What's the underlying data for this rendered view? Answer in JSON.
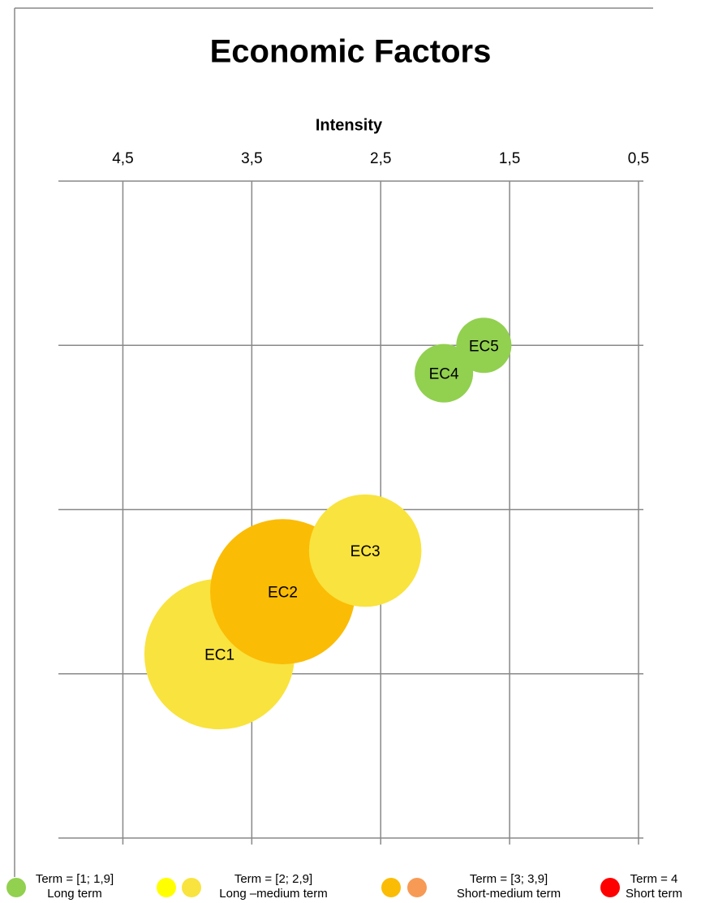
{
  "chart_data": {
    "type": "bubble",
    "title": "Economic Factors",
    "x_label": "Intensity",
    "xlim": [
      5,
      0.5
    ],
    "xticks": [
      {
        "value": 4.5,
        "label": "4,5"
      },
      {
        "value": 3.5,
        "label": "3,5"
      },
      {
        "value": 2.5,
        "label": "2,5"
      },
      {
        "value": 1.5,
        "label": "1,5"
      },
      {
        "value": 0.5,
        "label": "0,5"
      }
    ],
    "ylim": [
      0,
      4
    ],
    "yticks": [
      0,
      1,
      2,
      3,
      4
    ],
    "grid": true,
    "labels": [
      "EC1",
      "EC2",
      "EC3",
      "EC4",
      "EC5"
    ],
    "x": [
      3.75,
      3.26,
      2.62,
      2.01,
      1.7
    ],
    "y": [
      1.12,
      1.5,
      1.75,
      2.83,
      3.0
    ],
    "sizes": [
      4.3,
      4.0,
      2.4,
      0.65,
      0.58
    ],
    "colors": [
      "#f9e33e",
      "#fbbc05",
      "#f9e33e",
      "#92d050",
      "#92d050"
    ],
    "legend": [
      {
        "colors": [
          "#92d050"
        ],
        "label": "Term = [1; 1,9]",
        "sublabel": "Long term"
      },
      {
        "colors": [
          "#ffff00",
          "#f9e33e"
        ],
        "label": "Term = [2; 2,9]",
        "sublabel": "Long –medium term"
      },
      {
        "colors": [
          "#fbbc05",
          "#f79a55"
        ],
        "label": "Term = [3; 3,9]",
        "sublabel": "Short-medium term"
      },
      {
        "colors": [
          "#ff0000"
        ],
        "label": "Term = 4",
        "sublabel": "Short term"
      }
    ]
  }
}
